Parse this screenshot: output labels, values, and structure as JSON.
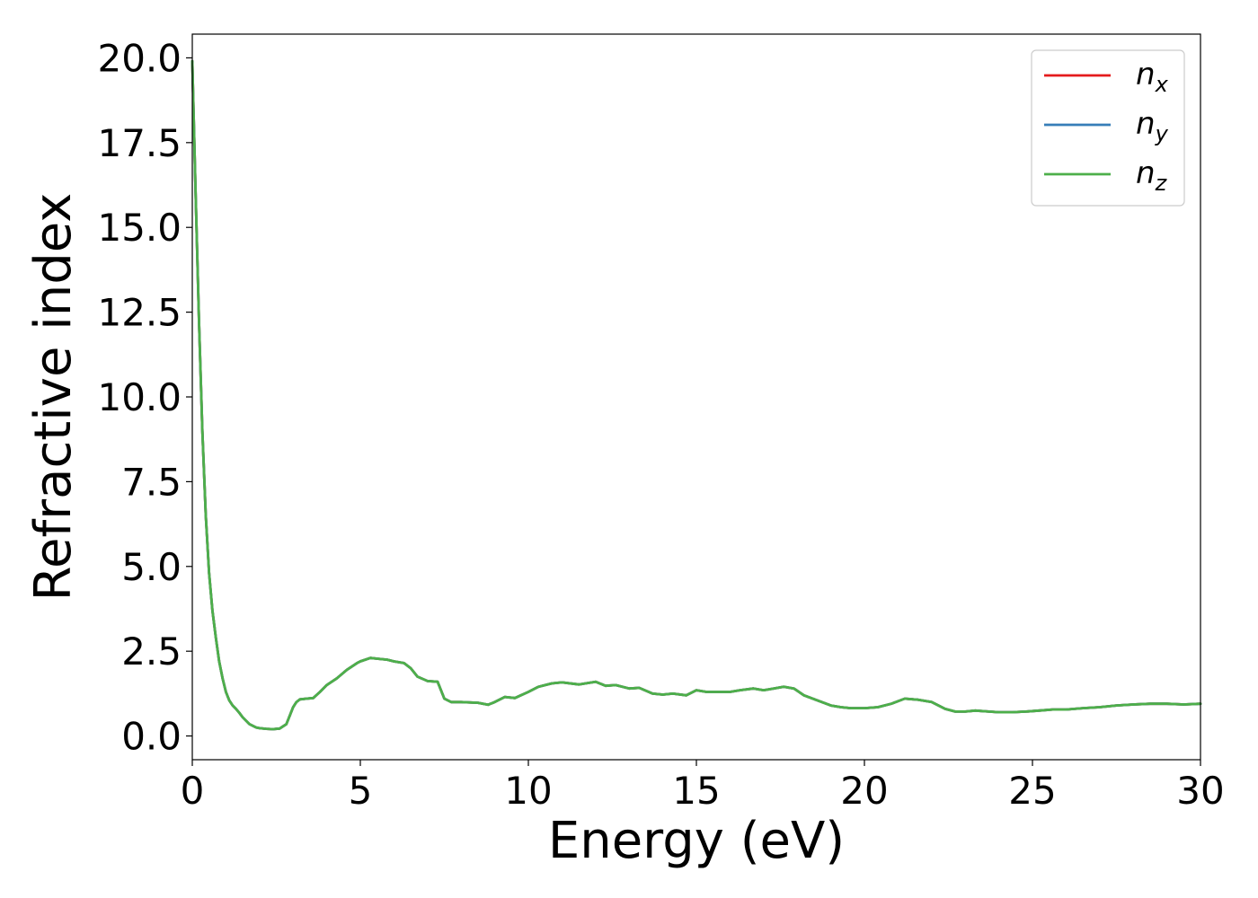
{
  "chart_data": {
    "type": "line",
    "title": "",
    "xlabel": "Energy (eV)",
    "ylabel": "Refractive index",
    "xlim": [
      0,
      30
    ],
    "ylim": [
      -0.7,
      20.7
    ],
    "xticks": [
      0,
      5,
      10,
      15,
      20,
      25,
      30
    ],
    "xtick_labels": [
      "0",
      "5",
      "10",
      "15",
      "20",
      "25",
      "30"
    ],
    "yticks": [
      0,
      2.5,
      5,
      7.5,
      10,
      12.5,
      15,
      17.5,
      20
    ],
    "ytick_labels": [
      "0.0",
      "2.5",
      "5.0",
      "7.5",
      "10.0",
      "12.5",
      "15.0",
      "17.5",
      "20.0"
    ],
    "grid": false,
    "legend_position": "top-right",
    "series": [
      {
        "name": "n",
        "subscript": "x",
        "color": "#e41a1c"
      },
      {
        "name": "n",
        "subscript": "y",
        "color": "#377eb8"
      },
      {
        "name": "n",
        "subscript": "z",
        "color": "#4daf4a"
      }
    ],
    "x": [
      0,
      0.1,
      0.2,
      0.3,
      0.4,
      0.5,
      0.6,
      0.7,
      0.8,
      0.9,
      1.0,
      1.1,
      1.2,
      1.3,
      1.4,
      1.5,
      1.7,
      1.9,
      2.0,
      2.2,
      2.4,
      2.6,
      2.8,
      2.9,
      3.0,
      3.1,
      3.2,
      3.4,
      3.6,
      3.8,
      4.0,
      4.3,
      4.6,
      4.9,
      5.0,
      5.3,
      5.5,
      5.8,
      6.0,
      6.3,
      6.5,
      6.7,
      7.0,
      7.3,
      7.5,
      7.7,
      8.0,
      8.5,
      8.8,
      9.0,
      9.3,
      9.6,
      10.0,
      10.3,
      10.7,
      11.0,
      11.5,
      12.0,
      12.3,
      12.6,
      13.0,
      13.3,
      13.7,
      14.0,
      14.3,
      14.7,
      15.0,
      15.3,
      15.7,
      16.0,
      16.3,
      16.7,
      17.0,
      17.3,
      17.6,
      17.9,
      18.2,
      18.6,
      19.0,
      19.3,
      19.6,
      20.0,
      20.4,
      20.8,
      21.2,
      21.6,
      22.0,
      22.4,
      22.7,
      23.0,
      23.3,
      23.7,
      24.0,
      24.4,
      24.8,
      25.2,
      25.6,
      26.0,
      26.5,
      27.0,
      27.5,
      28.0,
      28.5,
      29.0,
      29.5,
      30.0
    ],
    "y": [
      19.9,
      16.0,
      12.2,
      9.0,
      6.5,
      4.8,
      3.7,
      2.9,
      2.2,
      1.7,
      1.3,
      1.05,
      0.9,
      0.8,
      0.68,
      0.55,
      0.35,
      0.25,
      0.23,
      0.21,
      0.2,
      0.22,
      0.35,
      0.6,
      0.85,
      1.0,
      1.08,
      1.1,
      1.12,
      1.3,
      1.5,
      1.7,
      1.95,
      2.15,
      2.2,
      2.3,
      2.28,
      2.25,
      2.2,
      2.15,
      2.0,
      1.75,
      1.62,
      1.6,
      1.1,
      1.0,
      1.0,
      0.98,
      0.92,
      1.0,
      1.15,
      1.12,
      1.3,
      1.45,
      1.55,
      1.58,
      1.52,
      1.6,
      1.48,
      1.5,
      1.4,
      1.42,
      1.25,
      1.22,
      1.25,
      1.2,
      1.35,
      1.3,
      1.3,
      1.3,
      1.35,
      1.4,
      1.35,
      1.4,
      1.45,
      1.4,
      1.2,
      1.05,
      0.9,
      0.85,
      0.82,
      0.82,
      0.85,
      0.95,
      1.1,
      1.07,
      1.0,
      0.8,
      0.72,
      0.72,
      0.75,
      0.72,
      0.7,
      0.7,
      0.72,
      0.75,
      0.78,
      0.78,
      0.82,
      0.85,
      0.9,
      0.93,
      0.95,
      0.95,
      0.93,
      0.95
    ]
  }
}
